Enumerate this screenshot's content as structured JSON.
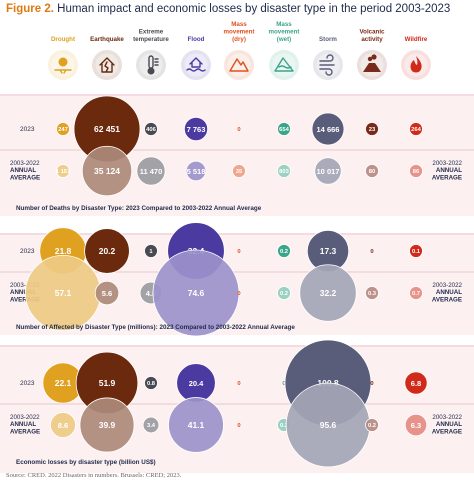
{
  "figure": {
    "label": "Figure 2.",
    "title": "Human impact and economic losses by disaster type in the period 2003-2023",
    "source": "Source: CRED. 2022 Disasters in numbers. Brussels: CRED; 2023."
  },
  "row_labels": {
    "current": "2023",
    "average_lines": [
      "2003-2022",
      "ANNUAL",
      "AVERAGE"
    ]
  },
  "disaster_types": [
    {
      "label": [
        "Drought"
      ],
      "color": "#e0a020",
      "icon": "drought-icon"
    },
    {
      "label": [
        "Earthquake"
      ],
      "color": "#6b2a0e",
      "icon": "earthquake-icon"
    },
    {
      "label": [
        "Extreme",
        "temperature"
      ],
      "color": "#4a4a52",
      "icon": "thermometer-icon"
    },
    {
      "label": [
        "Flood"
      ],
      "color": "#4b3aa0",
      "icon": "flood-icon"
    },
    {
      "label": [
        "Mass",
        "movement",
        "(dry)"
      ],
      "color": "#e05020",
      "icon": "mass-movement-dry-icon"
    },
    {
      "label": [
        "Mass",
        "movement",
        "(wet)"
      ],
      "color": "#3aa58a",
      "icon": "mass-movement-wet-icon"
    },
    {
      "label": [
        "Storm"
      ],
      "color": "#5a5d7a",
      "icon": "storm-icon"
    },
    {
      "label": [
        "Volcanic",
        "activity"
      ],
      "color": "#7a2a1a",
      "icon": "volcano-icon"
    },
    {
      "label": [
        "Wildfire"
      ],
      "color": "#d02a1a",
      "icon": "wildfire-icon"
    }
  ],
  "chart_data": [
    {
      "type": "bubble",
      "title": "Number of Deaths by Disaster Type: 2023 Compared to 2003-2022 Annual Average",
      "categories": [
        "Drought",
        "Earthquake",
        "Extreme temperature",
        "Flood",
        "Mass movement (dry)",
        "Mass movement (wet)",
        "Storm",
        "Volcanic activity",
        "Wildfire"
      ],
      "series": [
        {
          "name": "2023",
          "values": [
            247,
            62451,
            406,
            7763,
            0,
            654,
            14666,
            23,
            264
          ],
          "labels": [
            "247",
            "62 451",
            "406",
            "7 763",
            "0",
            "654",
            "14 666",
            "23",
            "264"
          ]
        },
        {
          "name": "2003-2022 ANNUAL AVERAGE",
          "values": [
            1157,
            35124,
            11470,
            5518,
            35,
            803,
            10017,
            80,
            86
          ],
          "labels": [
            "1 157",
            "35 124",
            "11 470",
            "5 518",
            "35",
            "803",
            "10 017",
            "80",
            "86"
          ]
        }
      ]
    },
    {
      "type": "bubble",
      "title": "Number of Affected by Disaster Type (millions): 2023 Compared to 2003-2022 Annual Average",
      "categories": [
        "Drought",
        "Earthquake",
        "Extreme temperature",
        "Flood",
        "Mass movement (dry)",
        "Mass movement (wet)",
        "Storm",
        "Volcanic activity",
        "Wildfire"
      ],
      "series": [
        {
          "name": "2023",
          "values": [
            21.8,
            20.2,
            1,
            32.4,
            0,
            0.2,
            17.3,
            0,
            0.1
          ],
          "labels": [
            "21.8",
            "20.2",
            "1",
            "32.4",
            "0",
            "0.2",
            "17.3",
            "0",
            "0.1"
          ]
        },
        {
          "name": "2003-2022 ANNUAL AVERAGE",
          "values": [
            57.1,
            5.6,
            4.8,
            74.6,
            0,
            0.2,
            32.2,
            0.3,
            0.7
          ],
          "labels": [
            "57.1",
            "5.6",
            "4.8",
            "74.6",
            "0",
            "0.2",
            "32.2",
            "0.3",
            "0.7"
          ]
        }
      ]
    },
    {
      "type": "bubble",
      "title": "Economic losses by disaster type (billion US$)",
      "categories": [
        "Drought",
        "Earthquake",
        "Extreme temperature",
        "Flood",
        "Mass movement (dry)",
        "Mass movement (wet)",
        "Storm",
        "Volcanic activity",
        "Wildfire"
      ],
      "series": [
        {
          "name": "2023",
          "values": [
            22.1,
            51.9,
            0.8,
            20.4,
            0,
            0,
            100.8,
            0,
            6.8
          ],
          "labels": [
            "22.1",
            "51.9",
            "0.8",
            "20.4",
            "0",
            "0",
            "100.8",
            "0",
            "6.8"
          ]
        },
        {
          "name": "2003-2022 ANNUAL AVERAGE",
          "values": [
            8.6,
            39.9,
            3.4,
            41.1,
            0,
            0.3,
            95.6,
            0.2,
            6.3
          ],
          "labels": [
            "8.6",
            "39.9",
            "3.4",
            "41.1",
            "0",
            "0.3",
            "95.6",
            "0.2",
            "6.3"
          ]
        }
      ]
    }
  ]
}
